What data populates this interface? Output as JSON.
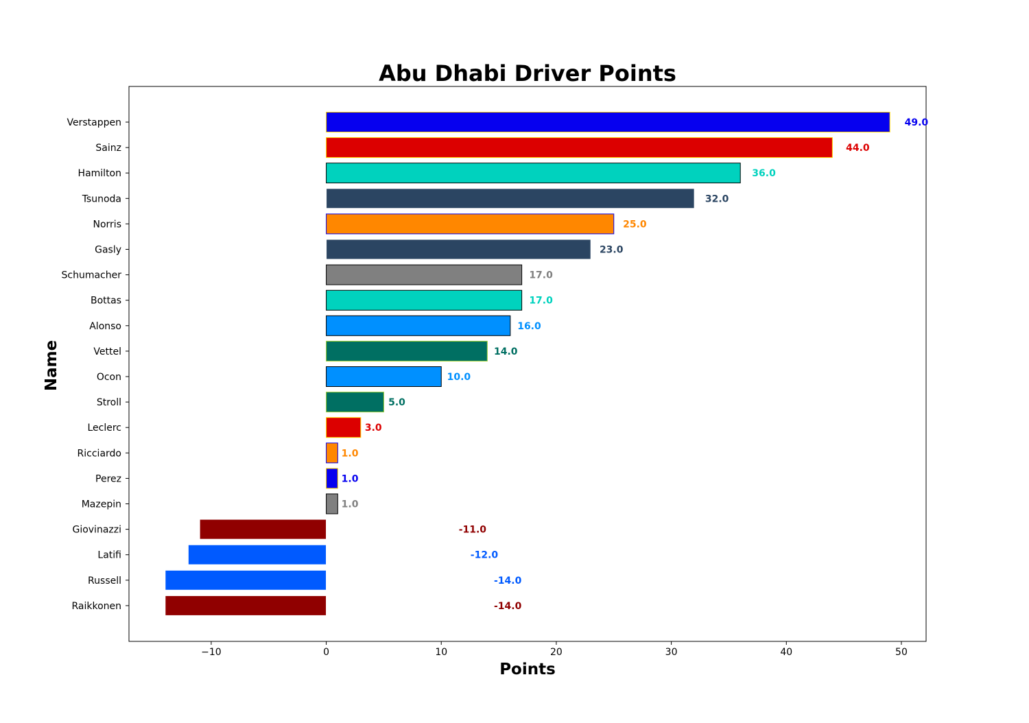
{
  "chart_data": {
    "type": "bar",
    "orientation": "horizontal",
    "title": "Abu Dhabi Driver Points",
    "xlabel": "Points",
    "ylabel": "Name",
    "xlim": [
      -17.15,
      52.15
    ],
    "xticks": [
      -10,
      0,
      10,
      20,
      30,
      40,
      50
    ],
    "xtick_labels": [
      "−10",
      "0",
      "10",
      "20",
      "30",
      "40",
      "50"
    ],
    "grid": false,
    "legend": "none",
    "bars": [
      {
        "name": "Verstappen",
        "value": 49.0,
        "label": "49.0",
        "color": "#0600ef",
        "edge": "#ffd700",
        "label_color": "#0600ef"
      },
      {
        "name": "Sainz",
        "value": 44.0,
        "label": "44.0",
        "color": "#dc0000",
        "edge": "#ffd700",
        "label_color": "#dc0000"
      },
      {
        "name": "Hamilton",
        "value": 36.0,
        "label": "36.0",
        "color": "#00d2be",
        "edge": "#000000",
        "label_color": "#00d2be"
      },
      {
        "name": "Tsunoda",
        "value": 32.0,
        "label": "32.0",
        "color": "#2b4562",
        "edge": "#ffffff",
        "label_color": "#2b4562"
      },
      {
        "name": "Norris",
        "value": 25.0,
        "label": "25.0",
        "color": "#ff8700",
        "edge": "#0600ef",
        "label_color": "#ff8700"
      },
      {
        "name": "Gasly",
        "value": 23.0,
        "label": "23.0",
        "color": "#2b4562",
        "edge": "#ffffff",
        "label_color": "#2b4562"
      },
      {
        "name": "Schumacher",
        "value": 17.0,
        "label": "17.0",
        "color": "#808080",
        "edge": "#000000",
        "label_color": "#808080"
      },
      {
        "name": "Bottas",
        "value": 17.0,
        "label": "17.0",
        "color": "#00d2be",
        "edge": "#000000",
        "label_color": "#00d2be"
      },
      {
        "name": "Alonso",
        "value": 16.0,
        "label": "16.0",
        "color": "#0090ff",
        "edge": "#000000",
        "label_color": "#0090ff"
      },
      {
        "name": "Vettel",
        "value": 14.0,
        "label": "14.0",
        "color": "#006f62",
        "edge": "#9acd32",
        "label_color": "#006f62"
      },
      {
        "name": "Ocon",
        "value": 10.0,
        "label": "10.0",
        "color": "#0090ff",
        "edge": "#000000",
        "label_color": "#0090ff"
      },
      {
        "name": "Stroll",
        "value": 5.0,
        "label": "5.0",
        "color": "#006f62",
        "edge": "#9acd32",
        "label_color": "#006f62"
      },
      {
        "name": "Leclerc",
        "value": 3.0,
        "label": "3.0",
        "color": "#dc0000",
        "edge": "#ffd700",
        "label_color": "#dc0000"
      },
      {
        "name": "Ricciardo",
        "value": 1.0,
        "label": "1.0",
        "color": "#ff8700",
        "edge": "#0600ef",
        "label_color": "#ff8700"
      },
      {
        "name": "Perez",
        "value": 1.0,
        "label": "1.0",
        "color": "#0600ef",
        "edge": "#ffd700",
        "label_color": "#0600ef"
      },
      {
        "name": "Mazepin",
        "value": 1.0,
        "label": "1.0",
        "color": "#808080",
        "edge": "#000000",
        "label_color": "#808080"
      },
      {
        "name": "Giovinazzi",
        "value": -11.0,
        "label": "-11.0",
        "color": "#900000",
        "edge": "#ffffff",
        "label_color": "#900000"
      },
      {
        "name": "Latifi",
        "value": -12.0,
        "label": "-12.0",
        "color": "#005aff",
        "edge": "#ffffff",
        "label_color": "#005aff"
      },
      {
        "name": "Russell",
        "value": -14.0,
        "label": "-14.0",
        "color": "#005aff",
        "edge": "#ffffff",
        "label_color": "#005aff"
      },
      {
        "name": "Raikkonen",
        "value": -14.0,
        "label": "-14.0",
        "color": "#900000",
        "edge": "#ffffff",
        "label_color": "#900000"
      }
    ]
  }
}
